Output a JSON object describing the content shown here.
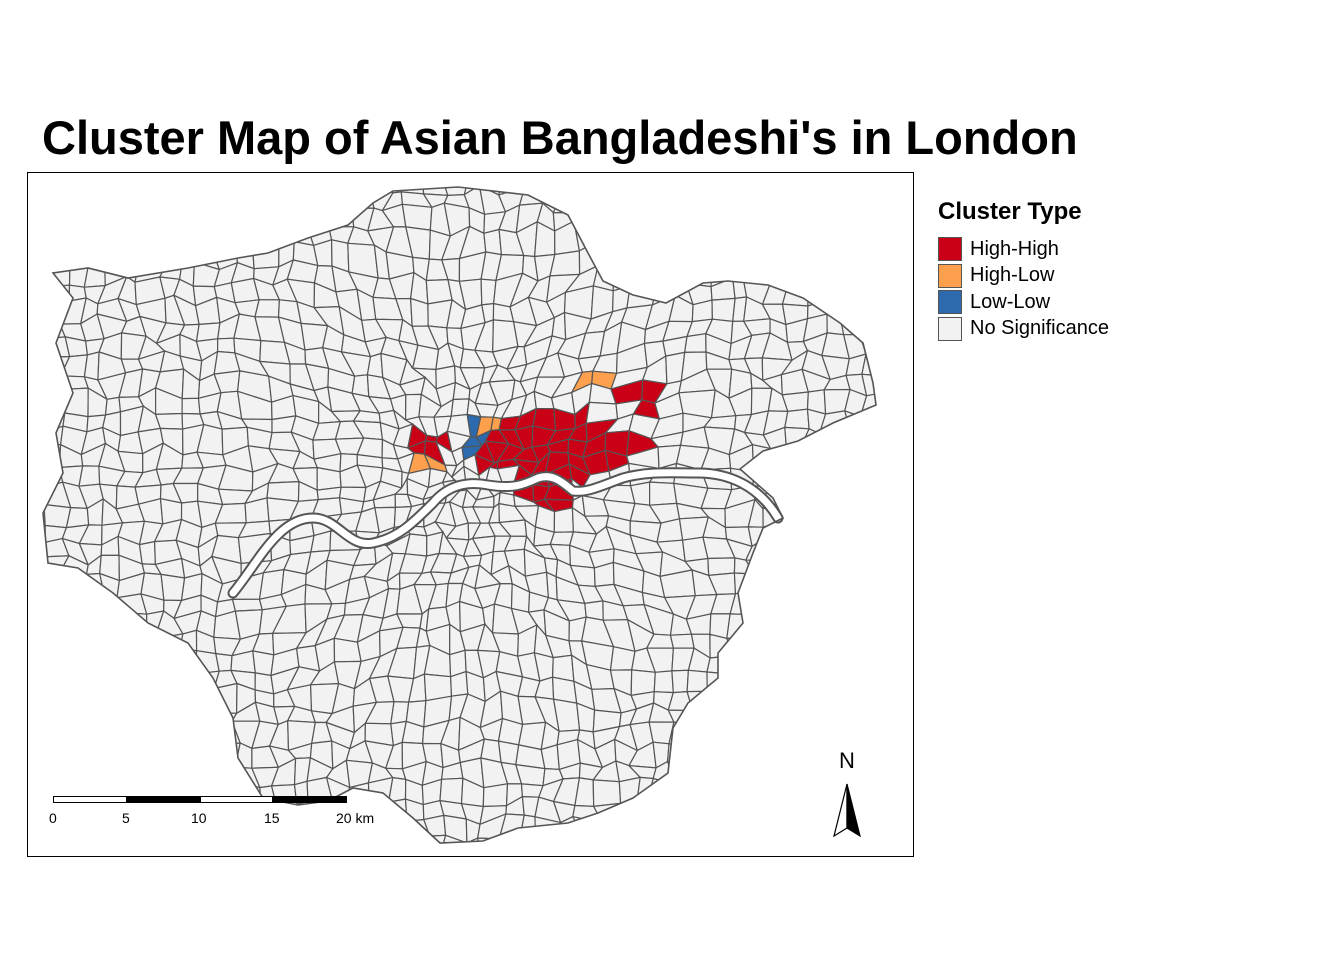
{
  "title": "Cluster Map of Asian Bangladeshi's in London",
  "legend": {
    "title": "Cluster Type",
    "items": [
      {
        "label": "High-High",
        "color": "#c90016"
      },
      {
        "label": "High-Low",
        "color": "#fca04e"
      },
      {
        "label": "Low-Low",
        "color": "#2c6aad"
      },
      {
        "label": "No Significance",
        "color": "#f2f2f2"
      }
    ]
  },
  "map": {
    "boundary_color": "#555555",
    "fill_default": "#f2f2f2"
  },
  "scale_bar": {
    "ticks": [
      "0",
      "5",
      "10",
      "15",
      "20 km"
    ]
  },
  "north_arrow": {
    "label": "N"
  }
}
